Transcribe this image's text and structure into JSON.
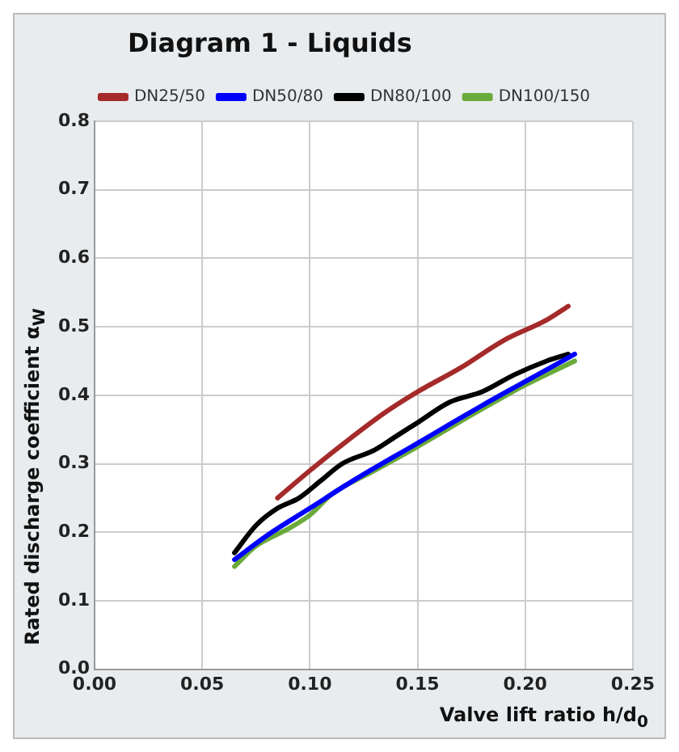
{
  "chart_data": {
    "type": "line",
    "title": "Diagram 1 - Liquids",
    "xlabel": "Valve lift ratio h/d$_{0}$",
    "ylabel": "Rated discharge coefficient α$_{W}$",
    "xlim": [
      0,
      0.25
    ],
    "xticks": [
      {
        "value": 0,
        "label": "0.00"
      },
      0.05,
      {
        "value": 0.1,
        "label": "0.10"
      },
      0.15,
      {
        "value": 0.2,
        "label": "0.20"
      },
      0.25
    ],
    "ylim": [
      0,
      0.8
    ],
    "yticks": [
      {
        "value": 0,
        "label": "0.0"
      },
      0.1,
      0.2,
      0.3,
      0.4,
      0.5,
      0.6,
      0.7,
      0.8
    ],
    "grid": true,
    "legend": "top",
    "marker": "none",
    "line_style": "solid",
    "series": [
      {
        "name": "DN25/50",
        "color": "#a52a2a",
        "x": [
          0.085,
          0.1,
          0.12,
          0.135,
          0.15,
          0.17,
          0.19,
          0.21,
          0.22
        ],
        "values": [
          0.25,
          0.29,
          0.34,
          0.375,
          0.405,
          0.44,
          0.48,
          0.51,
          0.53
        ]
      },
      {
        "name": "DN50/80",
        "color": "#0000ff",
        "x": [
          0.065,
          0.08,
          0.1,
          0.12,
          0.15,
          0.18,
          0.2,
          0.223
        ],
        "values": [
          0.16,
          0.195,
          0.235,
          0.275,
          0.33,
          0.385,
          0.42,
          0.46
        ]
      },
      {
        "name": "DN80/100",
        "color": "#000000",
        "x": [
          0.065,
          0.075,
          0.085,
          0.095,
          0.105,
          0.115,
          0.13,
          0.14,
          0.15,
          0.165,
          0.18,
          0.195,
          0.21,
          0.22
        ],
        "values": [
          0.17,
          0.21,
          0.235,
          0.25,
          0.275,
          0.3,
          0.32,
          0.34,
          0.36,
          0.39,
          0.405,
          0.43,
          0.45,
          0.46
        ]
      },
      {
        "name": "DN100/150",
        "color": "#6aaa3a",
        "x": [
          0.065,
          0.075,
          0.09,
          0.1,
          0.11,
          0.13,
          0.15,
          0.18,
          0.2,
          0.223
        ],
        "values": [
          0.15,
          0.18,
          0.205,
          0.225,
          0.255,
          0.29,
          0.325,
          0.38,
          0.415,
          0.45
        ]
      }
    ]
  }
}
